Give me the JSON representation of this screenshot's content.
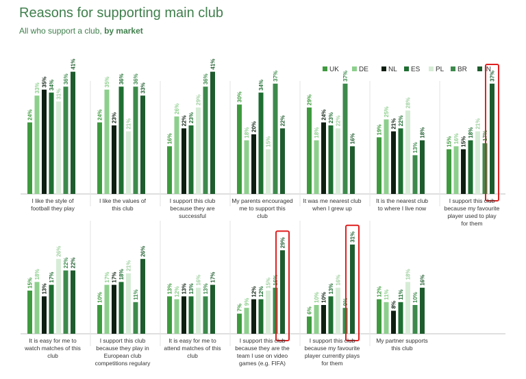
{
  "title": "Reasons for supporting main club",
  "subtitle_main": "All who support a club, ",
  "subtitle_bold": "by market",
  "chart_data": {
    "type": "bar",
    "series_names": [
      "UK",
      "DE",
      "NL",
      "ES",
      "PL",
      "BR",
      "IN"
    ],
    "colors": [
      "#3f9a3f",
      "#8ccf8c",
      "#0e1f12",
      "#1f6e32",
      "#d6ecd6",
      "#3d8a4c",
      "#1e5c2e"
    ],
    "groups": [
      {
        "label": "I like the style of football they play",
        "values": [
          24,
          33,
          35,
          34,
          31,
          36,
          41
        ]
      },
      {
        "label": "I like the values of this club",
        "values": [
          24,
          35,
          23,
          36,
          21,
          36,
          33
        ]
      },
      {
        "label": "I support this club because they are successful",
        "values": [
          16,
          26,
          22,
          23,
          29,
          36,
          41
        ]
      },
      {
        "label": "My parents encouraged me to support this club",
        "values": [
          30,
          18,
          20,
          34,
          15,
          37,
          22
        ]
      },
      {
        "label": "It was me nearest club when I grew up",
        "values": [
          29,
          18,
          24,
          23,
          22,
          37,
          16
        ]
      },
      {
        "label": "It is the nearest club to where I live now",
        "values": [
          19,
          25,
          21,
          22,
          28,
          13,
          18
        ]
      },
      {
        "label": "I support this club because my favourite player used to play for them",
        "values": [
          15,
          16,
          15,
          18,
          21,
          17,
          37
        ],
        "highlight": 6
      },
      {
        "label": "It is easy for me to watch matches of this club",
        "values": [
          15,
          18,
          13,
          17,
          26,
          22,
          22
        ]
      },
      {
        "label": "I support this club because they play in European club competitions regulary",
        "values": [
          10,
          17,
          17,
          18,
          21,
          11,
          26
        ]
      },
      {
        "label": "It is easy for me to attend matches of this club",
        "values": [
          13,
          12,
          13,
          13,
          16,
          13,
          17
        ]
      },
      {
        "label": "I support this club because they are the team I use on video games (e.g. FIFA)",
        "values": [
          7,
          9,
          12,
          12,
          15,
          16,
          29
        ],
        "highlight": 6
      },
      {
        "label": "I support this club because my favourite player currently plays for them",
        "values": [
          6,
          10,
          10,
          13,
          16,
          9,
          31
        ],
        "highlight": 6
      },
      {
        "label": "My partner supports this club",
        "values": [
          12,
          11,
          8,
          11,
          18,
          10,
          16
        ]
      }
    ]
  }
}
